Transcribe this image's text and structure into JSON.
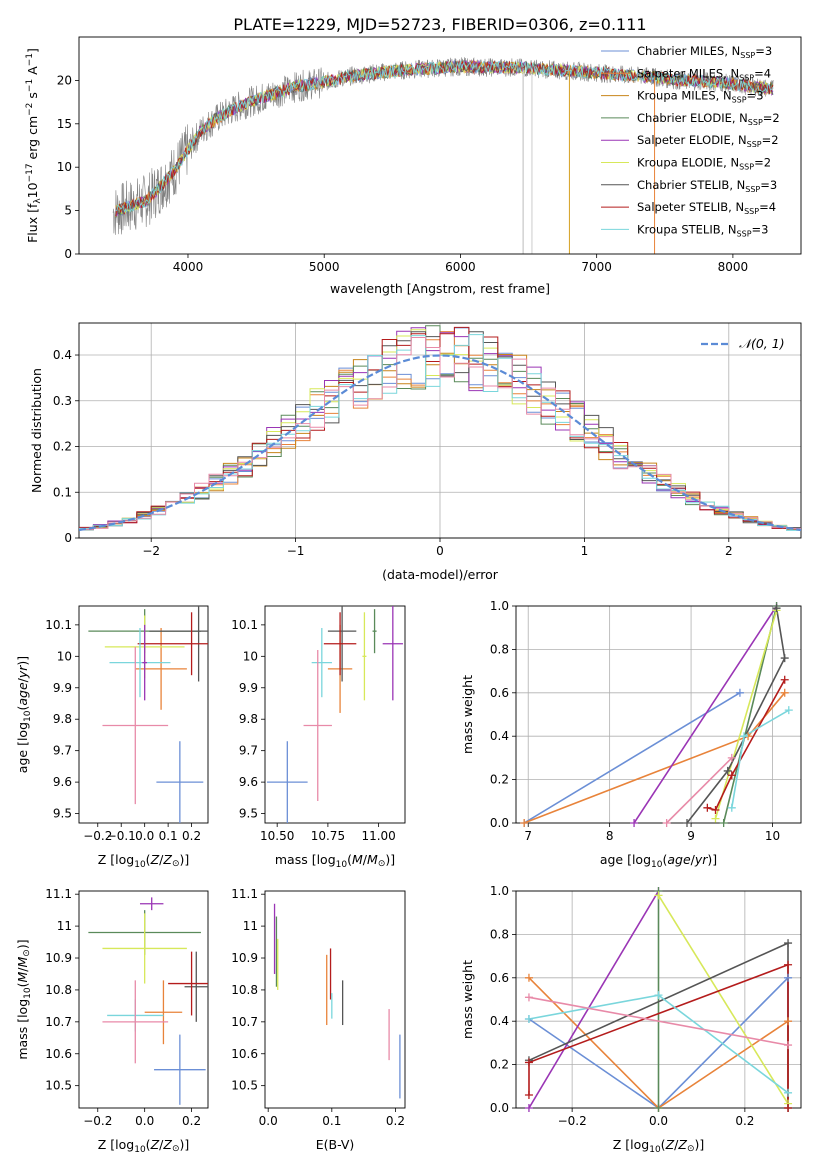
{
  "figure_title": "PLATE=1229, MJD=52723, FIBERID=0306, z=0.111",
  "colors": {
    "Chabrier MILES": "#6b8fd6",
    "Salpeter MILES": "#e8833a",
    "Kroupa MILES": "#c8841a",
    "Chabrier ELODIE": "#5a8a5a",
    "Salpeter ELODIE": "#9a35b5",
    "Kroupa ELODIE": "#d7e85a",
    "Chabrier STELIB": "#555555",
    "Salpeter STELIB": "#b41c1c",
    "Kroupa STELIB": "#7ad6dc",
    "pink": "#e88aa8",
    "data": "#808080"
  },
  "chart_data": [
    {
      "id": "spectrum",
      "type": "line",
      "xlabel": "wavelength [Angstrom, rest frame]",
      "ylabel": "Flux [f",
      "ylabel_parts": [
        "Flux [f",
        "λ",
        "10",
        "−17",
        " erg cm",
        "−2",
        " s",
        "−1",
        " A",
        "−1",
        "]"
      ],
      "xlim": [
        3200,
        8500
      ],
      "ylim": [
        0,
        25
      ],
      "xticks": [
        4000,
        5000,
        6000,
        7000,
        8000
      ],
      "yticks": [
        0,
        5,
        10,
        15,
        20
      ],
      "continuum": {
        "x": [
          3450,
          3600,
          3700,
          3800,
          3900,
          4000,
          4100,
          4200,
          4300,
          4400,
          4600,
          4800,
          5000,
          5200,
          5400,
          5600,
          5800,
          6000,
          6200,
          6400,
          6600,
          6800,
          7000,
          7200,
          7400,
          7600,
          7800,
          8000,
          8200,
          8300
        ],
        "y": [
          4.8,
          5.6,
          6.2,
          7.8,
          9.6,
          12.0,
          14.3,
          15.5,
          16.4,
          17.2,
          18.3,
          19.3,
          19.8,
          20.5,
          20.9,
          21.2,
          21.4,
          21.6,
          21.5,
          21.5,
          21.3,
          21.1,
          20.9,
          20.6,
          20.4,
          20.0,
          19.9,
          19.6,
          19.2,
          19.0
        ]
      },
      "legend_location": "upper right",
      "legend": [
        {
          "label": "Chabrier MILES",
          "sub": "SSP",
          "n": "3"
        },
        {
          "label": "Salpeter MILES",
          "sub": "SSP",
          "n": "4"
        },
        {
          "label": "Kroupa MILES",
          "sub": "SSP",
          "n": "3"
        },
        {
          "label": "Chabrier ELODIE",
          "sub": "SSP",
          "n": "2"
        },
        {
          "label": "Salpeter ELODIE",
          "sub": "SSP",
          "n": "2"
        },
        {
          "label": "Kroupa ELODIE",
          "sub": "SSP",
          "n": "2"
        },
        {
          "label": "Chabrier STELIB",
          "sub": "SSP",
          "n": "3"
        },
        {
          "label": "Salpeter STELIB",
          "sub": "SSP",
          "n": "4"
        },
        {
          "label": "Kroupa STELIB",
          "sub": "SSP",
          "n": "3"
        }
      ]
    },
    {
      "id": "residuals",
      "type": "line",
      "xlabel": "(data-model)/error",
      "ylabel": "Normed distribution",
      "xlim": [
        -2.5,
        2.5
      ],
      "ylim": [
        0,
        0.47
      ],
      "xticks": [
        -2,
        -1,
        0,
        1,
        2
      ],
      "xtick_labels": [
        "−2",
        "−1",
        "0",
        "1",
        "2"
      ],
      "yticks": [
        0.0,
        0.1,
        0.2,
        0.3,
        0.4
      ],
      "grid": true,
      "curve_label": "𝒩(0, 1)",
      "curve_color": "#5b8bd6",
      "curve": {
        "mean": 0,
        "sigma": 1
      }
    },
    {
      "id": "age_vs_Z",
      "type": "scatter",
      "xlabel": "Z [log",
      "ylabel": "age  [log",
      "xlim": [
        -0.28,
        0.27
      ],
      "ylim": [
        9.47,
        10.16
      ],
      "xticks": [
        -0.2,
        -0.1,
        0.0,
        0.1,
        0.2
      ],
      "xtick_labels": [
        "−0.2",
        "−0.1",
        "0.0",
        "0.1",
        "0.2"
      ],
      "yticks": [
        9.5,
        9.6,
        9.7,
        9.8,
        9.9,
        10.0,
        10.1
      ],
      "points": [
        {
          "model": "Chabrier MILES",
          "x": 0.15,
          "y": 9.6,
          "xerr": 0.1,
          "yerr": 0.13
        },
        {
          "model": "Salpeter MILES",
          "x": 0.07,
          "y": 9.96,
          "xerr": 0.11,
          "yerr": 0.13
        },
        {
          "model": "Chabrier ELODIE",
          "x": 0.0,
          "y": 10.08,
          "xerr": 0.24,
          "yerr": 0.07
        },
        {
          "model": "Kroupa ELODIE",
          "x": 0.0,
          "y": 10.03,
          "xerr": 0.17,
          "yerr": 0.1
        },
        {
          "model": "Chabrier STELIB",
          "x": 0.23,
          "y": 10.08,
          "xerr": 0.21,
          "yerr": 0.16
        },
        {
          "model": "Salpeter STELIB",
          "x": 0.2,
          "y": 10.04,
          "xerr": 0.23,
          "yerr": 0.1
        },
        {
          "model": "Kroupa STELIB",
          "x": -0.02,
          "y": 9.98,
          "xerr": 0.13,
          "yerr": 0.11
        },
        {
          "model": "Salpeter ELODIE",
          "x": 0.0,
          "y": 9.98,
          "xerr": 0.01,
          "yerr": 0.12
        },
        {
          "model": "pink",
          "x": -0.04,
          "y": 9.78,
          "xerr": 0.14,
          "yerr": 0.25
        }
      ]
    },
    {
      "id": "age_vs_mass",
      "type": "scatter",
      "xlabel": "mass [log",
      "xlim": [
        10.44,
        11.13
      ],
      "ylim": [
        9.47,
        10.16
      ],
      "xticks": [
        10.5,
        10.75,
        11.0
      ],
      "xtick_labels": [
        "10.50",
        "10.75",
        "11.00"
      ],
      "yticks": [
        9.5,
        9.6,
        9.7,
        9.8,
        9.9,
        10.0,
        10.1
      ],
      "points": [
        {
          "model": "Chabrier MILES",
          "x": 10.55,
          "y": 9.6,
          "xerr": 0.1,
          "yerr": 0.13
        },
        {
          "model": "Salpeter MILES",
          "x": 10.81,
          "y": 9.96,
          "xerr": 0.06,
          "yerr": 0.14
        },
        {
          "model": "Chabrier ELODIE",
          "x": 10.98,
          "y": 10.08,
          "xerr": 0.01,
          "yerr": 0.07
        },
        {
          "model": "Kroupa ELODIE",
          "x": 10.93,
          "y": 10.0,
          "xerr": 0.01,
          "yerr": 0.14
        },
        {
          "model": "Chabrier STELIB",
          "x": 10.82,
          "y": 10.08,
          "xerr": 0.07,
          "yerr": 0.16
        },
        {
          "model": "Salpeter STELIB",
          "x": 10.81,
          "y": 10.04,
          "xerr": 0.08,
          "yerr": 0.1
        },
        {
          "model": "Kroupa STELIB",
          "x": 10.72,
          "y": 9.98,
          "xerr": 0.05,
          "yerr": 0.11
        },
        {
          "model": "Salpeter ELODIE",
          "x": 11.07,
          "y": 10.04,
          "xerr": 0.05,
          "yerr": 0.18
        },
        {
          "model": "pink",
          "x": 10.7,
          "y": 9.78,
          "xerr": 0.07,
          "yerr": 0.24
        }
      ]
    },
    {
      "id": "weight_vs_age",
      "type": "line",
      "xlabel": "age  [log",
      "ylabel": "mass weight",
      "xlim": [
        6.85,
        10.35
      ],
      "ylim": [
        0,
        1.0
      ],
      "xticks": [
        7,
        8,
        9,
        10
      ],
      "yticks": [
        0.0,
        0.2,
        0.4,
        0.6,
        0.8,
        1.0
      ],
      "ytick_labels": [
        "0.0",
        "0.2",
        "0.4",
        "0.6",
        "0.8",
        "1.0"
      ],
      "grid": true,
      "series": [
        {
          "model": "Chabrier MILES",
          "x": [
            6.95,
            9.6
          ],
          "y": [
            0.0,
            0.6
          ]
        },
        {
          "model": "Salpeter MILES",
          "x": [
            6.95,
            9.7,
            10.15
          ],
          "y": [
            0.0,
            0.4,
            0.6
          ]
        },
        {
          "model": "Salpeter ELODIE",
          "x": [
            8.3,
            10.05
          ],
          "y": [
            0.0,
            1.0
          ]
        },
        {
          "model": "pink",
          "x": [
            8.7,
            9.5
          ],
          "y": [
            0.0,
            0.3
          ]
        },
        {
          "model": "Chabrier ELODIE",
          "x": [
            9.4,
            10.05
          ],
          "y": [
            0.0,
            1.0
          ]
        },
        {
          "model": "Kroupa ELODIE",
          "x": [
            9.3,
            10.05
          ],
          "y": [
            0.02,
            0.98
          ]
        },
        {
          "model": "Chabrier STELIB",
          "x": [
            8.95,
            9.45,
            10.15,
            10.05
          ],
          "y": [
            0.0,
            0.24,
            0.76,
            0.99
          ]
        },
        {
          "model": "Salpeter STELIB",
          "x": [
            9.2,
            9.3,
            9.5,
            10.15
          ],
          "y": [
            0.07,
            0.06,
            0.22,
            0.66
          ]
        },
        {
          "model": "Kroupa STELIB",
          "x": [
            9.5,
            9.65,
            10.2
          ],
          "y": [
            0.07,
            0.4,
            0.52
          ]
        }
      ]
    },
    {
      "id": "mass_vs_Z",
      "type": "scatter",
      "xlabel": "Z [log",
      "ylabel": "mass [log",
      "xlim": [
        -0.28,
        0.27
      ],
      "ylim": [
        10.43,
        11.11
      ],
      "xticks": [
        -0.2,
        0.0,
        0.2
      ],
      "xtick_labels": [
        "−0.2",
        "0.0",
        "0.2"
      ],
      "yticks": [
        10.5,
        10.6,
        10.7,
        10.8,
        10.9,
        11.0,
        11.1
      ],
      "points": [
        {
          "model": "Chabrier MILES",
          "x": 0.15,
          "y": 10.55,
          "xerr": 0.11,
          "yerr": 0.11
        },
        {
          "model": "Salpeter MILES",
          "x": 0.08,
          "y": 10.73,
          "xerr": 0.08,
          "yerr": 0.1
        },
        {
          "model": "Chabrier ELODIE",
          "x": 0.0,
          "y": 10.98,
          "xerr": 0.24,
          "yerr": 0.07
        },
        {
          "model": "Kroupa ELODIE",
          "x": 0.0,
          "y": 10.93,
          "xerr": 0.18,
          "yerr": 0.11
        },
        {
          "model": "Salpeter ELODIE",
          "x": 0.03,
          "y": 11.07,
          "xerr": 0.05,
          "yerr": 0.02
        },
        {
          "model": "Chabrier STELIB",
          "x": 0.22,
          "y": 10.81,
          "xerr": 0.05,
          "yerr": 0.11
        },
        {
          "model": "Salpeter STELIB",
          "x": 0.2,
          "y": 10.82,
          "xerr": 0.1,
          "yerr": 0.1
        },
        {
          "model": "Kroupa STELIB",
          "x": -0.04,
          "y": 10.72,
          "xerr": 0.12,
          "yerr": 0.05
        },
        {
          "model": "pink",
          "x": -0.04,
          "y": 10.7,
          "xerr": 0.14,
          "yerr": 0.13
        }
      ]
    },
    {
      "id": "mass_vs_EBV",
      "type": "scatter",
      "xlabel": "E(B-V)",
      "xlim": [
        -0.005,
        0.215
      ],
      "ylim": [
        10.43,
        11.11
      ],
      "xticks": [
        0.0,
        0.1,
        0.2
      ],
      "xtick_labels": [
        "0.0",
        "0.1",
        "0.2"
      ],
      "yticks": [
        10.5,
        10.6,
        10.7,
        10.8,
        10.9,
        11.0,
        11.1
      ],
      "points": [
        {
          "model": "Salpeter ELODIE",
          "x": 0.01,
          "y": 10.96,
          "yerr": 0.11
        },
        {
          "model": "Chabrier ELODIE",
          "x": 0.013,
          "y": 10.92,
          "yerr": 0.11
        },
        {
          "model": "Kroupa ELODIE",
          "x": 0.015,
          "y": 10.88,
          "yerr": 0.08
        },
        {
          "model": "Salpeter MILES",
          "x": 0.092,
          "y": 10.8,
          "yerr": 0.11
        },
        {
          "model": "Salpeter STELIB",
          "x": 0.098,
          "y": 10.85,
          "yerr": 0.08
        },
        {
          "model": "Kroupa STELIB",
          "x": 0.1,
          "y": 10.75,
          "yerr": 0.04
        },
        {
          "model": "Chabrier STELIB",
          "x": 0.117,
          "y": 10.76,
          "yerr": 0.07
        },
        {
          "model": "pink",
          "x": 0.19,
          "y": 10.66,
          "yerr": 0.08
        },
        {
          "model": "Chabrier MILES",
          "x": 0.207,
          "y": 10.56,
          "yerr": 0.1
        }
      ]
    },
    {
      "id": "weight_vs_Z",
      "type": "line",
      "xlabel": "Z [log",
      "ylabel": "mass weight",
      "xlim": [
        -0.33,
        0.33
      ],
      "ylim": [
        0,
        1.0
      ],
      "xticks": [
        -0.2,
        0.0,
        0.2
      ],
      "xtick_labels": [
        "−0.2",
        "0.0",
        "0.2"
      ],
      "yticks": [
        0.0,
        0.2,
        0.4,
        0.6,
        0.8,
        1.0
      ],
      "ytick_labels": [
        "0.0",
        "0.2",
        "0.4",
        "0.6",
        "0.8",
        "1.0"
      ],
      "grid": true,
      "series": [
        {
          "model": "Chabrier MILES",
          "x": [
            -0.3,
            0.0,
            0.3,
            0.3
          ],
          "y": [
            0.41,
            0.0,
            0.6,
            0.0
          ]
        },
        {
          "model": "Salpeter MILES",
          "x": [
            -0.3,
            0.0,
            0.3,
            0.3
          ],
          "y": [
            0.6,
            0.0,
            0.4,
            0.0
          ]
        },
        {
          "model": "Salpeter ELODIE",
          "x": [
            -0.3,
            0.0
          ],
          "y": [
            0.0,
            1.0
          ]
        },
        {
          "model": "Chabrier ELODIE",
          "x": [
            0.0,
            0.0
          ],
          "y": [
            0.0,
            1.0
          ]
        },
        {
          "model": "Kroupa ELODIE",
          "x": [
            0.0,
            0.3
          ],
          "y": [
            0.98,
            0.02
          ]
        },
        {
          "model": "Chabrier STELIB",
          "x": [
            -0.3,
            0.3,
            0.3
          ],
          "y": [
            0.22,
            0.76,
            0.0
          ]
        },
        {
          "model": "Salpeter STELIB",
          "x": [
            -0.3,
            -0.3,
            0.3,
            0.3
          ],
          "y": [
            0.06,
            0.21,
            0.66,
            0.0
          ]
        },
        {
          "model": "Kroupa STELIB",
          "x": [
            -0.3,
            0.0,
            0.3
          ],
          "y": [
            0.41,
            0.52,
            0.07
          ]
        },
        {
          "model": "pink",
          "x": [
            -0.3,
            0.3
          ],
          "y": [
            0.51,
            0.29
          ]
        }
      ]
    }
  ]
}
